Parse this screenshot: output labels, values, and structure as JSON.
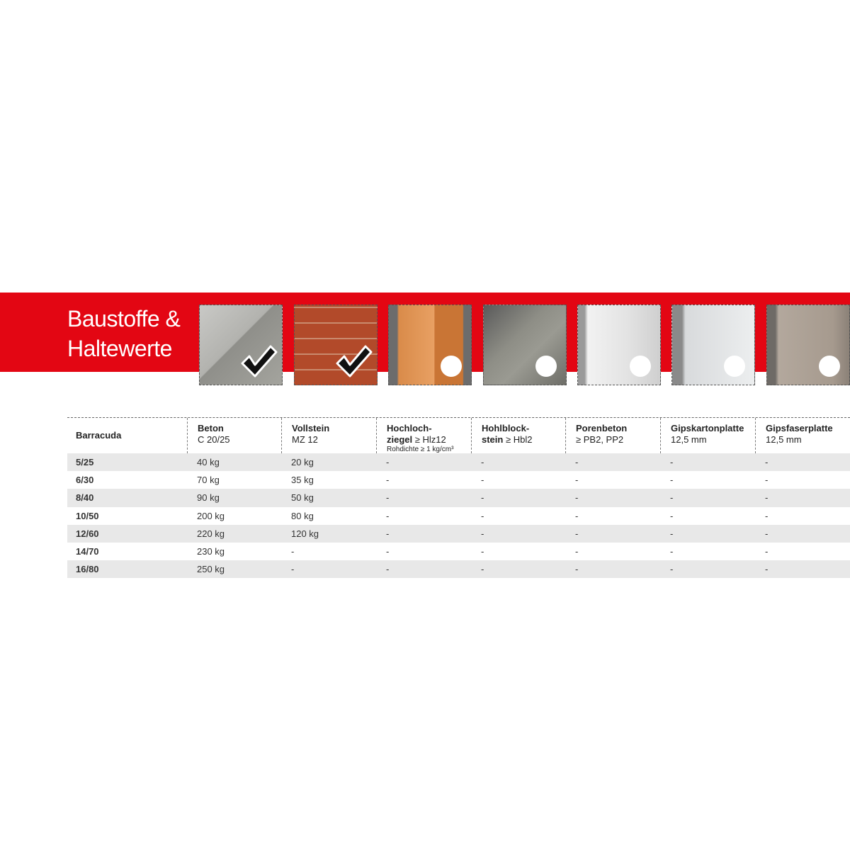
{
  "header": {
    "title_lines": [
      "Baustoffe &",
      "Haltewerte"
    ]
  },
  "materials": [
    {
      "suitable": true
    },
    {
      "suitable": true
    },
    {
      "suitable": false
    },
    {
      "suitable": false
    },
    {
      "suitable": false
    },
    {
      "suitable": false
    },
    {
      "suitable": false
    }
  ],
  "table": {
    "columns": [
      {
        "name_lines": [
          "Barracuda"
        ]
      },
      {
        "name_lines": [
          "Beton"
        ],
        "spec": "C 20/25"
      },
      {
        "name_lines": [
          "Vollstein"
        ],
        "spec": "MZ 12"
      },
      {
        "name_lines": [
          "Hochloch-",
          "ziegel"
        ],
        "spec": "≥ Hlz12",
        "note": "Rohdichte ≥ 1 kg/cm³"
      },
      {
        "name_lines": [
          "Hohlblock-",
          "stein"
        ],
        "spec": "≥ Hbl2"
      },
      {
        "name_lines": [
          "Porenbeton"
        ],
        "spec": "≥ PB2, PP2"
      },
      {
        "name_lines": [
          "Gipskartonplatte"
        ],
        "spec": "12,5 mm"
      },
      {
        "name_lines": [
          "Gipsfaserplatte"
        ],
        "spec": "12,5 mm"
      }
    ],
    "rows": [
      [
        "5/25",
        "40 kg",
        "20 kg",
        "-",
        "-",
        "-",
        "-",
        "-"
      ],
      [
        "6/30",
        "70 kg",
        "35 kg",
        "-",
        "-",
        "-",
        "-",
        "-"
      ],
      [
        "8/40",
        "90 kg",
        "50 kg",
        "-",
        "-",
        "-",
        "-",
        "-"
      ],
      [
        "10/50",
        "200 kg",
        "80 kg",
        "-",
        "-",
        "-",
        "-",
        "-"
      ],
      [
        "12/60",
        "220 kg",
        "120 kg",
        "-",
        "-",
        "-",
        "-",
        "-"
      ],
      [
        "14/70",
        "230 kg",
        "-",
        "-",
        "-",
        "-",
        "-",
        "-"
      ],
      [
        "16/80",
        "250 kg",
        "-",
        "-",
        "-",
        "-",
        "-",
        "-"
      ]
    ]
  }
}
